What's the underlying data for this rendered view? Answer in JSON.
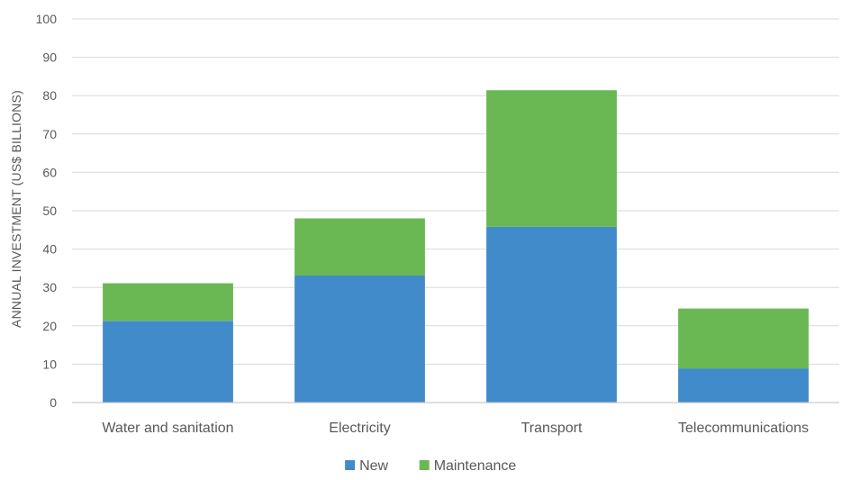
{
  "chart_data": {
    "type": "bar",
    "stacked": true,
    "categories": [
      "Water and sanitation",
      "Electricity",
      "Transport",
      "Telecommunications"
    ],
    "series": [
      {
        "name": "New",
        "values": [
          21.3,
          33.1,
          45.8,
          8.9
        ],
        "color": "#428BCA"
      },
      {
        "name": "Maintenance",
        "values": [
          9.8,
          14.9,
          35.6,
          15.6
        ],
        "color": "#6AB854"
      }
    ],
    "ylabel": "ANNUAL INVESTMENT (US$ BILLIONS)",
    "xlabel": "",
    "ylim": [
      0,
      100
    ],
    "yticks": [
      0,
      10,
      20,
      30,
      40,
      50,
      60,
      70,
      80,
      90,
      100
    ],
    "grid": true,
    "legend_position": "bottom"
  }
}
